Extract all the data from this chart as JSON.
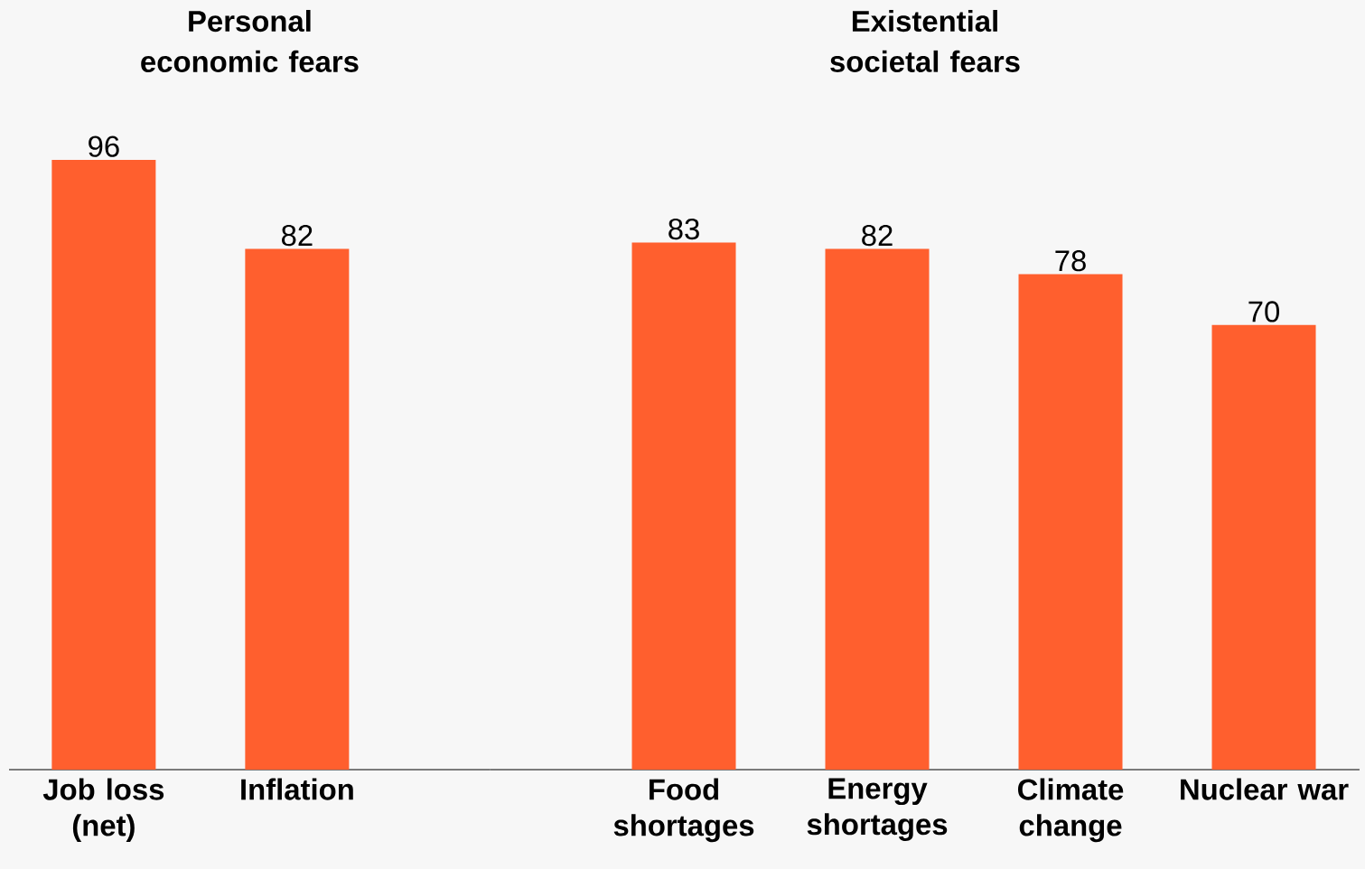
{
  "chart_data": [
    {
      "type": "bar",
      "title": "Personal economic fears",
      "categories": [
        "Job loss (net)",
        "Inflation"
      ],
      "values": [
        96,
        82
      ],
      "color": "#ff5f2e",
      "data_labels": true
    },
    {
      "type": "bar",
      "title": "Existential societal fears",
      "categories": [
        "Food shortages",
        "Energy shortages",
        "Climate change",
        "Nuclear war"
      ],
      "values": [
        83,
        82,
        78,
        70
      ],
      "color": "#ff5f2e",
      "data_labels": true
    }
  ]
}
